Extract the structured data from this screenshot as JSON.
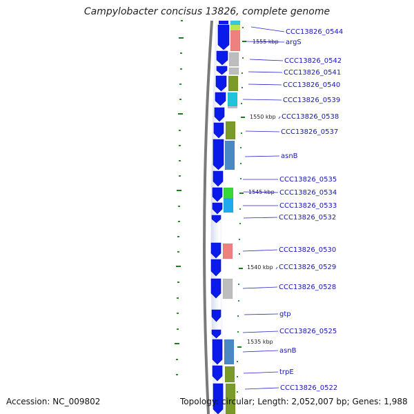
{
  "title": "Campylobacter concisus 13826, complete genome",
  "accession_text": "Accession: NC_009802",
  "topology_text": "Topology: circular; Length: 2,052,007 bp; Genes: 1,988",
  "colors": {
    "gene_arrow": "#0a1ae8",
    "label_text": "#1515b5",
    "tick": "#148214",
    "backbone": "#7a7a7a"
  },
  "kbp_labels": [
    "1555 kbp",
    "1550 kbp",
    "1545 kbp",
    "1540 kbp",
    "1535 kbp"
  ],
  "genes": [
    {
      "label": "CCC13826_0544",
      "cog_color": "#36c8e0"
    },
    {
      "label": "argS",
      "cog_color": "#ef8080"
    },
    {
      "label": "CCC13826_0542",
      "cog_color": "#bdbdbd"
    },
    {
      "label": "CCC13826_0541",
      "cog_color": "#bdbdbd"
    },
    {
      "label": "CCC13826_0540",
      "cog_color": "#7a9a2a"
    },
    {
      "label": "CCC13826_0539",
      "cog_color": "#1ec4dc"
    },
    {
      "label": "CCC13826_0538",
      "cog_color": ""
    },
    {
      "label": "CCC13826_0537",
      "cog_color": "#7a9a2a"
    },
    {
      "label": "asnB",
      "cog_color": "#4a88c4"
    },
    {
      "label": "CCC13826_0535",
      "cog_color": ""
    },
    {
      "label": "CCC13826_0534",
      "cog_color": "#38d838"
    },
    {
      "label": "CCC13826_0533",
      "cog_color": "#20aaee"
    },
    {
      "label": "CCC13826_0532",
      "cog_color": ""
    },
    {
      "label": "CCC13826_0530",
      "cog_color": "#ef8080"
    },
    {
      "label": "CCC13826_0529",
      "cog_color": ""
    },
    {
      "label": "CCC13826_0528",
      "cog_color": "#bdbdbd"
    },
    {
      "label": "gtp",
      "cog_color": ""
    },
    {
      "label": "CCC13826_0525",
      "cog_color": ""
    },
    {
      "label": "asnB",
      "cog_color": "#4a88c4"
    },
    {
      "label": "trpE",
      "cog_color": "#7a9a2a"
    },
    {
      "label": "CCC13826_0522",
      "cog_color": "#7a9a2a"
    }
  ]
}
